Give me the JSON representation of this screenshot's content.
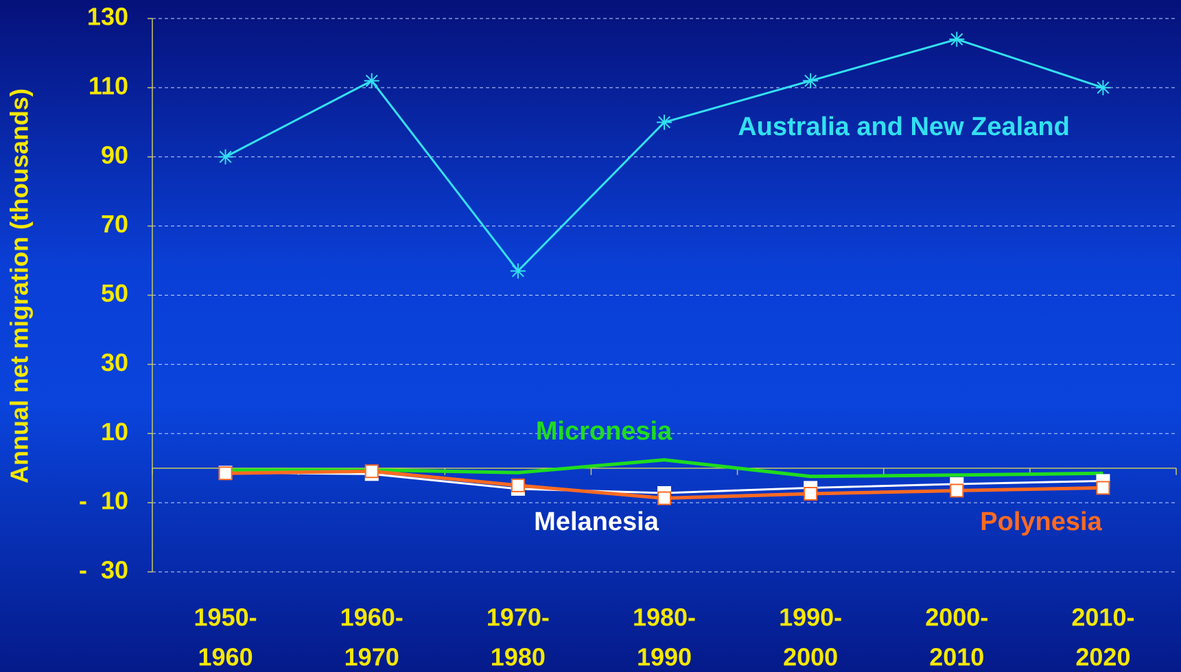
{
  "chart_data": {
    "type": "line",
    "y_label": "Annual net migration (thousands)",
    "categories": [
      [
        "1950-",
        "1960"
      ],
      [
        "1960-",
        "1970"
      ],
      [
        "1970-",
        "1980"
      ],
      [
        "1980-",
        "1990"
      ],
      [
        "1990-",
        "2000"
      ],
      [
        "2000-",
        "2010"
      ],
      [
        "2010-",
        "2020"
      ]
    ],
    "series": [
      {
        "name": "Australia and New Zealand",
        "color": "#33e0f0",
        "marker": "asterisk",
        "values": [
          90,
          112,
          57,
          100,
          112,
          124,
          110
        ]
      },
      {
        "name": "Micronesia",
        "color": "#1fdc1f",
        "marker": "none",
        "values": [
          -0.5,
          -0.5,
          -1.3,
          2.4,
          -2.4,
          -2,
          -1.5
        ]
      },
      {
        "name": "Melanesia",
        "color": "#ffffff",
        "marker": "square",
        "values": [
          -1.3,
          -1.7,
          -6,
          -7.2,
          -5.7,
          -4.6,
          -3.7
        ]
      },
      {
        "name": "Polynesia",
        "color": "#ff6a22",
        "marker": "square",
        "values": [
          -1.5,
          -0.9,
          -5,
          -8.7,
          -7.4,
          -6.5,
          -5.7
        ]
      }
    ],
    "ylim": [
      -30,
      130
    ],
    "yticks": [
      {
        "value": -30,
        "label": "-  30"
      },
      {
        "value": -10,
        "label": "-  10"
      },
      10,
      30,
      50,
      70,
      90,
      110,
      130
    ],
    "grid": true
  }
}
